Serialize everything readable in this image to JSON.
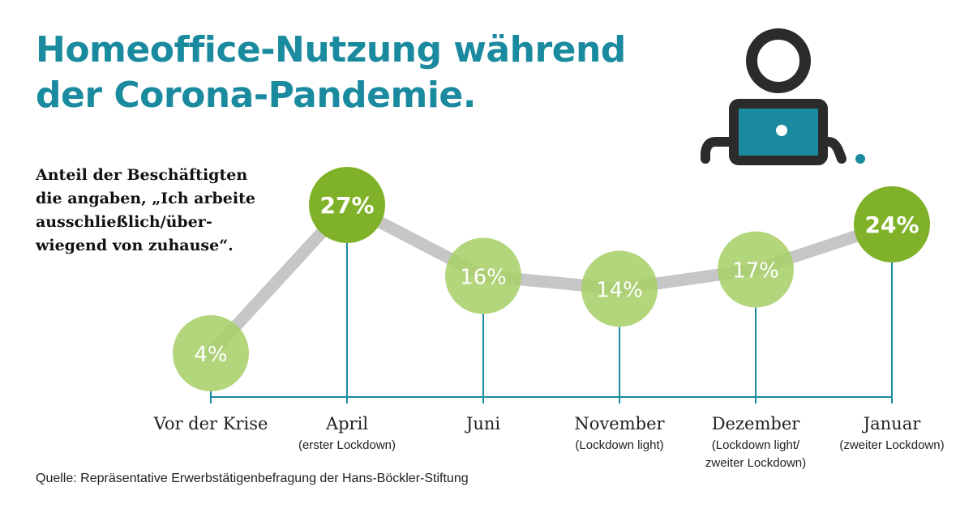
{
  "title_line1": "Homeoffice-Nutzung während",
  "title_line2": "der Corona-Pandemie.",
  "subtitle_lines": [
    "Anteil der Beschäftigten",
    "die angaben, „Ich arbeite",
    "ausschließlich/über-",
    "wiegend von zuhause“."
  ],
  "source": "Quelle: Repräsentative Erwerbstätigenbefragung der Hans-Böckler-Stiftung",
  "icon": "person-at-laptop-icon",
  "colors": {
    "teal": "#1a8a9f",
    "line": "#c6c6c6",
    "light_green": "#a8cf6a",
    "dark_green": "#7fb228",
    "icon_dark": "#2b2b2b"
  },
  "chart_data": {
    "type": "line",
    "unit": "%",
    "categories": [
      "Vor der Krise",
      "April",
      "Juni",
      "November",
      "Dezember",
      "Januar"
    ],
    "category_notes": [
      [],
      [
        "(erster Lockdown)"
      ],
      [],
      [
        "(Lockdown light)"
      ],
      [
        "(Lockdown light/",
        "zweiter Lockdown)"
      ],
      [
        "(zweiter Lockdown)"
      ]
    ],
    "values": [
      4,
      27,
      16,
      14,
      17,
      24
    ],
    "value_labels": [
      "4%",
      "27%",
      "16%",
      "14%",
      "17%",
      "24%"
    ],
    "highlighted": [
      false,
      true,
      false,
      false,
      false,
      true
    ],
    "ylim": [
      4,
      27
    ]
  }
}
